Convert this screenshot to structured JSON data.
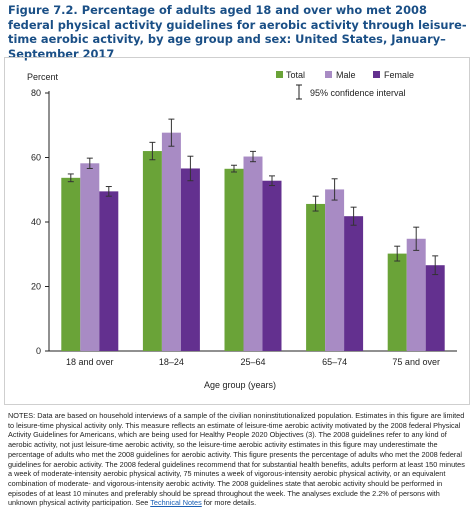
{
  "title": "Figure 7.2. Percentage of adults aged 18 and over who met 2008 federal physical activity guidelines for aerobic activity through leisure-time aerobic activity, by age group and sex: United States, January–September 2017",
  "chart_data": {
    "type": "bar",
    "ylabel": "Percent",
    "xlabel": "Age group (years)",
    "ylim": [
      0,
      80
    ],
    "yticks": [
      0,
      20,
      40,
      60,
      80
    ],
    "grid": false,
    "legend_position": "top-right",
    "categories": [
      "18 and over",
      "18–24",
      "25–64",
      "65–74",
      "75 and over"
    ],
    "series": [
      {
        "name": "Total",
        "color": "#6aa338",
        "values": [
          53.7,
          62.0,
          56.5,
          45.6,
          30.2
        ],
        "ci_low": [
          52.5,
          59.3,
          55.5,
          43.4,
          27.9
        ],
        "ci_high": [
          54.9,
          64.7,
          57.6,
          48.0,
          32.5
        ]
      },
      {
        "name": "Male",
        "color": "#a88bc4",
        "values": [
          58.2,
          67.7,
          60.3,
          50.1,
          34.8
        ],
        "ci_low": [
          56.6,
          63.5,
          58.7,
          46.8,
          31.2
        ],
        "ci_high": [
          59.8,
          71.9,
          61.9,
          53.4,
          38.4
        ]
      },
      {
        "name": "Female",
        "color": "#63308f",
        "values": [
          49.5,
          56.6,
          52.8,
          41.8,
          26.6
        ],
        "ci_low": [
          48.0,
          52.8,
          51.3,
          39.0,
          23.7
        ],
        "ci_high": [
          51.0,
          60.4,
          54.3,
          44.6,
          29.5
        ]
      }
    ],
    "ci_legend_label": "95% confidence interval"
  },
  "notes": {
    "text": "NOTES: Data are based on household interviews of a sample of the civilian noninstitutionalized population. Estimates in this figure are limited to leisure-time physical activity only. This measure reflects an estimate of leisure-time aerobic activity motivated by the 2008 federal Physical Activity Guidelines for Americans, which are being used for Healthy People 2020 Objectives (3). The 2008 guidelines refer to any kind of aerobic activity, not just leisure-time aerobic activity, so the leisure-time aerobic activity estimates in this figure may underestimate the percentage of adults who met the 2008 guidelines for aerobic activity. This figure presents the percentage of adults who met the 2008 federal guidelines for aerobic activity. The 2008 federal guidelines recommend that for substantial health benefits, adults perform at least 150 minutes a week of moderate-intensity aerobic physical activity, 75 minutes a week of vigorous-intensity aerobic physical activity, or an equivalent combination of moderate- and vigorous-intensity aerobic activity. The 2008 guidelines state that aerobic activity should be performed in episodes of at least 10 minutes and preferably should be spread throughout the week. The analyses exclude the 2.2% of persons with unknown physical activity participation. See",
    "link_text": "Technical Notes",
    "suffix": "for more details."
  }
}
